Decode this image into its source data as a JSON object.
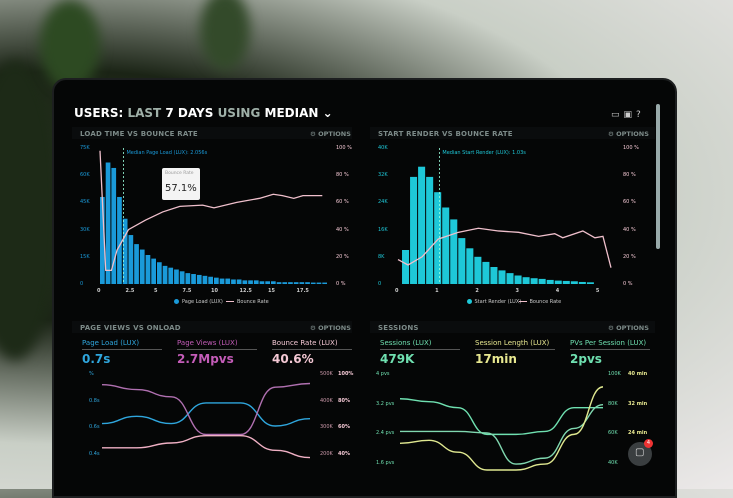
{
  "header": {
    "prefix": "USERS:",
    "last": "LAST",
    "days": "7 DAYS",
    "using": "USING",
    "median": "MEDIAN",
    "chevron": "chevron-down-icon"
  },
  "toolbar_icons": [
    "monitor-icon",
    "image-icon",
    "help-icon"
  ],
  "options_label": "OPTIONS",
  "colors": {
    "blue": "#1a9ad9",
    "cyan": "#1ec8d8",
    "pink": "#e8a8b8",
    "magenta": "#c45cb8",
    "green": "#6fe0b0",
    "yellow": "#e8e890"
  },
  "chart_data": [
    {
      "type": "bar",
      "title": "LOAD TIME VS BOUNCE RATE",
      "annotation": "Median Page Load (LUX): 2.056s",
      "tooltip": {
        "label": "Bounce Rate",
        "value": "57.1%"
      },
      "x_ticks": [
        "0",
        "2.5",
        "5",
        "7.5",
        "10",
        "12.5",
        "15",
        "17.5"
      ],
      "y_ticks": [
        "0",
        "15K",
        "30K",
        "45K",
        "60K",
        "75K"
      ],
      "y2_ticks": [
        "0 %",
        "20 %",
        "40 %",
        "60 %",
        "80 %",
        "100 %"
      ],
      "xlim": [
        0,
        20
      ],
      "ylim": [
        0,
        75000
      ],
      "y2lim": [
        0,
        100
      ],
      "median_x": 2.056,
      "legend": [
        "Page Load (LUX)",
        "Bounce Rate"
      ],
      "bars_x_start": 0,
      "bar_width": 0.5,
      "bars": [
        48000,
        67000,
        64000,
        48000,
        36000,
        27000,
        22000,
        19000,
        16000,
        14000,
        12000,
        10000,
        9000,
        8000,
        7000,
        6000,
        5500,
        5000,
        4500,
        4000,
        3500,
        3000,
        3000,
        2500,
        2500,
        2000,
        2000,
        2000,
        1500,
        1500,
        1500,
        1000,
        1000,
        1000,
        1000,
        1000,
        1000,
        800,
        800,
        800
      ],
      "line": [
        [
          0,
          98
        ],
        [
          0.5,
          10
        ],
        [
          1,
          10
        ],
        [
          1.5,
          25
        ],
        [
          2.5,
          40
        ],
        [
          4,
          47
        ],
        [
          5.5,
          53
        ],
        [
          7,
          57.1
        ],
        [
          9,
          58
        ],
        [
          10,
          56
        ],
        [
          12,
          60
        ],
        [
          14,
          63
        ],
        [
          15.2,
          66
        ],
        [
          16,
          65
        ],
        [
          17,
          63
        ],
        [
          17.8,
          65
        ],
        [
          19.5,
          65
        ]
      ]
    },
    {
      "type": "bar",
      "title": "START RENDER VS BOUNCE RATE",
      "annotation": "Median Start Render (LUX): 1.03s",
      "x_ticks": [
        "0",
        "1",
        "2",
        "3",
        "4",
        "5"
      ],
      "y_ticks": [
        "0",
        "8K",
        "16K",
        "24K",
        "32K",
        "40K"
      ],
      "y2_ticks": [
        "0 %",
        "20 %",
        "40 %",
        "60 %",
        "80 %",
        "100 %"
      ],
      "xlim": [
        0,
        5.4
      ],
      "ylim": [
        0,
        40000
      ],
      "y2lim": [
        0,
        100
      ],
      "median_x": 1.03,
      "legend": [
        "Start Render (LUX)",
        "Bounce Rate"
      ],
      "bars_x_start": 0.1,
      "bar_width": 0.2,
      "bars": [
        10000,
        31500,
        34500,
        31500,
        27000,
        22500,
        19000,
        13500,
        10500,
        8000,
        6500,
        5000,
        4000,
        3200,
        2500,
        2000,
        1700,
        1500,
        1200,
        1000,
        900,
        800,
        600,
        500
      ],
      "line": [
        [
          0,
          18
        ],
        [
          0.25,
          14
        ],
        [
          0.6,
          20
        ],
        [
          1,
          33
        ],
        [
          1.5,
          38
        ],
        [
          2,
          41
        ],
        [
          2.5,
          39
        ],
        [
          3,
          38
        ],
        [
          3.5,
          35
        ],
        [
          3.9,
          37
        ],
        [
          4.1,
          34
        ],
        [
          4.6,
          39
        ],
        [
          4.9,
          34
        ],
        [
          5.1,
          35
        ],
        [
          5.3,
          12
        ]
      ]
    },
    {
      "type": "line",
      "title": "PAGE VIEWS VS ONLOAD",
      "kpis": [
        {
          "label": "Page Load (LUX)",
          "value": "0.7s",
          "color": "#2fa6dd"
        },
        {
          "label": "Page Views (LUX)",
          "value": "2.7Mpvs",
          "color": "#c45cb8"
        },
        {
          "label": "Bounce Rate (LUX)",
          "value": "40.6%",
          "color": "#f4c8d4"
        }
      ],
      "y_ticks": [
        "%",
        "0.8s",
        "0.6s",
        "0.4s"
      ],
      "y2_ticks": [
        "500K",
        "400K",
        "300K",
        "200K"
      ],
      "y3_ticks": [
        "100%",
        "80%",
        "60%",
        "40%"
      ],
      "series": [
        {
          "color": "#2fa6dd",
          "values": [
            0.6,
            0.66,
            0.6,
            0.77,
            0.77,
            0.58,
            0.64
          ]
        },
        {
          "color": "#b070b0",
          "values": [
            0.92,
            0.88,
            0.82,
            0.51,
            0.51,
            0.9,
            0.93
          ]
        },
        {
          "color": "#f0b0c4",
          "values": [
            0.4,
            0.4,
            0.44,
            0.5,
            0.5,
            0.38,
            0.32
          ]
        }
      ]
    },
    {
      "type": "line",
      "title": "SESSIONS",
      "kpis": [
        {
          "label": "Sessions (LUX)",
          "value": "479K",
          "color": "#6fe0b0"
        },
        {
          "label": "Session Length (LUX)",
          "value": "17min",
          "color": "#e8e890"
        },
        {
          "label": "PVs Per Session (LUX)",
          "value": "2pvs",
          "color": "#6fe0b0"
        }
      ],
      "y_ticks": [
        "4 pvs",
        "3.2 pvs",
        "2.4 pvs",
        "1.6 pvs"
      ],
      "y2_ticks": [
        "100K",
        "80K",
        "60K",
        "40K"
      ],
      "y3_ticks": [
        "40 min",
        "32 min",
        "24 min"
      ],
      "series": [
        {
          "color": "#6fe0b0",
          "values": [
            3.2,
            3.1,
            2.9,
            2.0,
            2.0,
            2.1,
            2.9,
            2.9
          ]
        },
        {
          "color": "#80d8b0",
          "values": [
            2.1,
            2.1,
            2.1,
            2.05,
            1.0,
            1.2,
            2.2,
            3.0
          ]
        },
        {
          "color": "#e0e890",
          "values": [
            1.7,
            1.8,
            1.4,
            0.8,
            0.8,
            1.0,
            2.0,
            3.6
          ]
        }
      ]
    }
  ],
  "chat": {
    "icon": "chat-icon",
    "badge": "4"
  }
}
